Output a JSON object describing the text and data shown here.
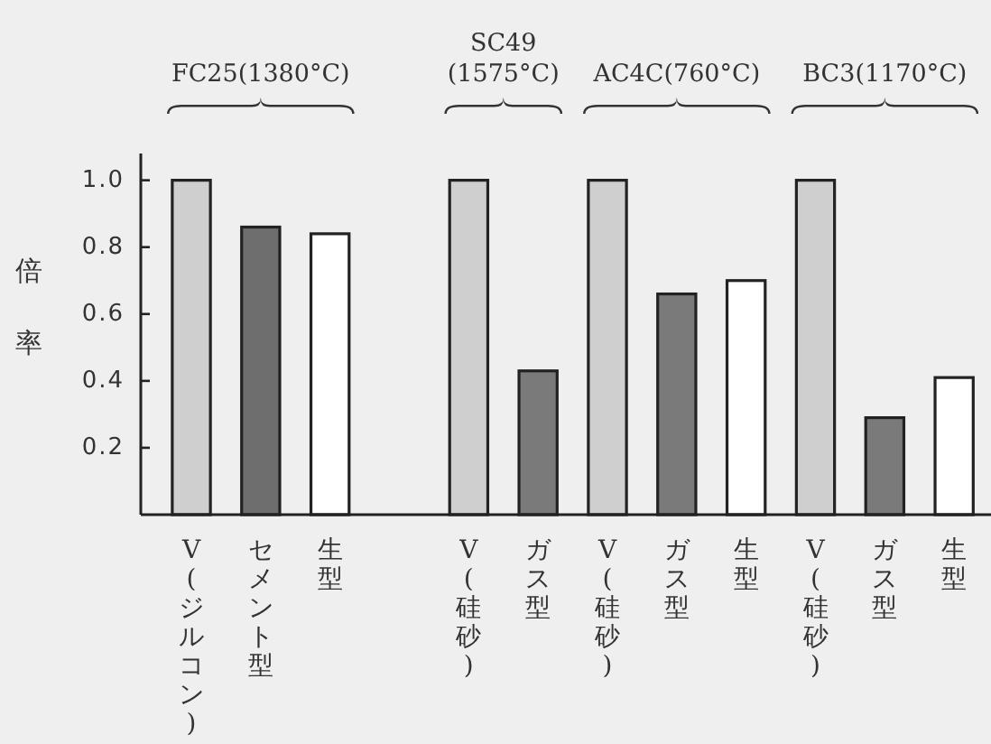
{
  "chart_data": {
    "type": "bar",
    "ylabel": "倍率",
    "categories": [
      "V(ジルコン)",
      "セメント型",
      "生型",
      null,
      "V(硅砂)",
      "ガス型",
      "V(硅砂)",
      "ガス型",
      "生型",
      "V(硅砂)",
      "ガス型",
      "生型"
    ],
    "values": [
      1.0,
      0.86,
      0.84,
      null,
      1.0,
      0.43,
      1.0,
      0.66,
      0.7,
      1.0,
      0.29,
      0.41
    ],
    "colors": [
      "#cfcfcf",
      "#6e6e6e",
      "#ffffff",
      null,
      "#cfcfcf",
      "#7a7a7a",
      "#cfcfcf",
      "#7a7a7a",
      "#ffffff",
      "#cfcfcf",
      "#7a7a7a",
      "#ffffff"
    ],
    "ylim": [
      0,
      1.08
    ],
    "yticks": [
      0.2,
      0.4,
      0.6,
      0.8,
      {
        "value": 1,
        "label": "1.0"
      }
    ],
    "grid": false,
    "annotations": [
      "FC25(1380°C)",
      "SC49\n(1575°C)",
      "AC4C(760°C)",
      "BC3(1170°C)"
    ]
  }
}
